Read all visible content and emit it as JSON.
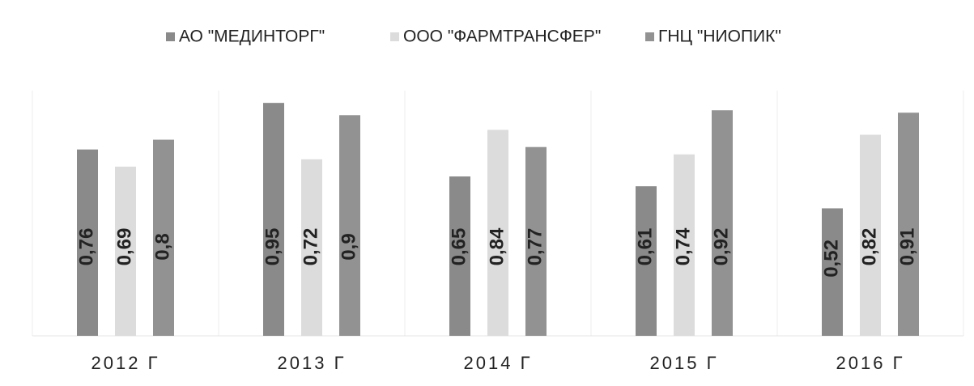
{
  "chart_data": {
    "type": "bar",
    "categories": [
      "2012 Г",
      "2013 Г",
      "2014 Г",
      "2015 Г",
      "2016 Г"
    ],
    "series": [
      {
        "name": "АО \"МЕДИНТОРГ\"",
        "color": "#8a8a8a",
        "values": [
          0.76,
          0.95,
          0.65,
          0.61,
          0.52
        ],
        "value_labels": [
          "0,76",
          "0,95",
          "0,65",
          "0,61",
          "0,52"
        ]
      },
      {
        "name": "ООО \"ФАРМТРАНСФЕР\"",
        "color": "#dcdcdc",
        "values": [
          0.69,
          0.72,
          0.84,
          0.74,
          0.82
        ],
        "value_labels": [
          "0,69",
          "0,72",
          "0,84",
          "0,74",
          "0,82"
        ]
      },
      {
        "name": "ГНЦ \"НИОПИК\"",
        "color": "#929292",
        "values": [
          0.8,
          0.9,
          0.77,
          0.92,
          0.91
        ],
        "value_labels": [
          "0,8",
          "0,9",
          "0,77",
          "0,92",
          "0,91"
        ]
      }
    ],
    "ylim": [
      0,
      1
    ]
  }
}
